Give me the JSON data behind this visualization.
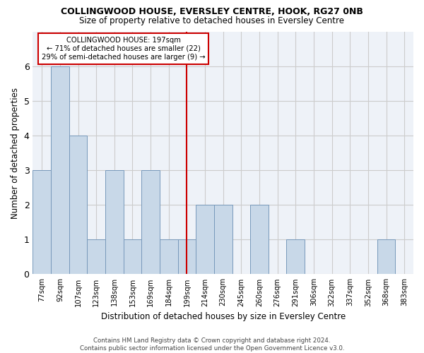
{
  "title1": "COLLINGWOOD HOUSE, EVERSLEY CENTRE, HOOK, RG27 0NB",
  "title2": "Size of property relative to detached houses in Eversley Centre",
  "xlabel": "Distribution of detached houses by size in Eversley Centre",
  "ylabel": "Number of detached properties",
  "categories": [
    "77sqm",
    "92sqm",
    "107sqm",
    "123sqm",
    "138sqm",
    "153sqm",
    "169sqm",
    "184sqm",
    "199sqm",
    "214sqm",
    "230sqm",
    "245sqm",
    "260sqm",
    "276sqm",
    "291sqm",
    "306sqm",
    "322sqm",
    "337sqm",
    "352sqm",
    "368sqm",
    "383sqm"
  ],
  "values": [
    3,
    6,
    4,
    1,
    3,
    1,
    3,
    1,
    1,
    2,
    2,
    0,
    2,
    0,
    1,
    0,
    0,
    0,
    0,
    1,
    0
  ],
  "bar_color": "#c8d8e8",
  "bar_edge_color": "#7799bb",
  "vline_x_index": 8,
  "vline_color": "#cc0000",
  "annotation_text": "COLLINGWOOD HOUSE: 197sqm\n← 71% of detached houses are smaller (22)\n29% of semi-detached houses are larger (9) →",
  "annotation_box_color": "#ffffff",
  "annotation_box_edge_color": "#cc0000",
  "ylim": [
    0,
    7
  ],
  "yticks": [
    0,
    1,
    2,
    3,
    4,
    5,
    6
  ],
  "footnote": "Contains HM Land Registry data © Crown copyright and database right 2024.\nContains public sector information licensed under the Open Government Licence v3.0.",
  "grid_color": "#cccccc",
  "bg_color": "#eef2f8"
}
